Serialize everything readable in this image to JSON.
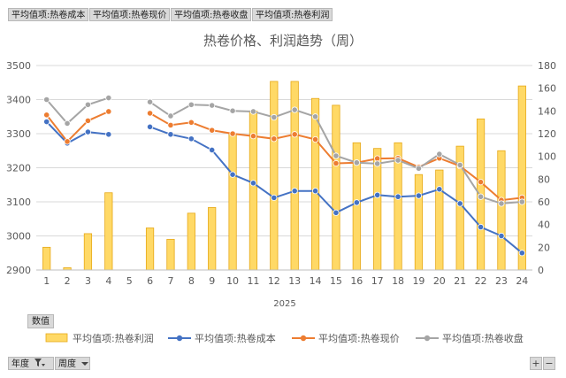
{
  "field_buttons": {
    "b1": "平均值项:热卷成本",
    "b2": "平均值项:热卷现价",
    "b3": "平均值项:热卷收盘",
    "b4": "平均值项:热卷利润"
  },
  "values_button": "数值",
  "bottom_buttons": {
    "year": "年度",
    "week": "周度",
    "plus": "+",
    "minus": "−"
  },
  "icons": {
    "filter": "filter-icon",
    "dropdown": "dropdown-arrow-icon"
  },
  "chart_data": {
    "type": "bar+line",
    "title": "热卷价格、利润趋势（周）",
    "xgroup_label": "2025",
    "categories": [
      "1",
      "2",
      "3",
      "4",
      "5",
      "6",
      "7",
      "8",
      "9",
      "10",
      "11",
      "12",
      "13",
      "14",
      "15",
      "16",
      "17",
      "18",
      "19",
      "20",
      "21",
      "22",
      "23",
      "24"
    ],
    "left_axis": {
      "min": 2900,
      "max": 3500,
      "ticks": [
        2900,
        3000,
        3100,
        3200,
        3300,
        3400,
        3500
      ]
    },
    "right_axis": {
      "min": 0,
      "max": 180,
      "ticks": [
        0,
        20,
        40,
        60,
        80,
        100,
        120,
        140,
        160,
        180
      ]
    },
    "colors": {
      "bar": "#ffd966",
      "bar_border": "#e6a817",
      "cost": "#4472c4",
      "price": "#ed7d31",
      "close": "#a5a5a5"
    },
    "series": [
      {
        "name": "平均值项:热卷利润",
        "kind": "bar",
        "axis": "right",
        "values": [
          20,
          2,
          32,
          68,
          null,
          37,
          27,
          50,
          55,
          120,
          140,
          166,
          166,
          151,
          145,
          112,
          107,
          112,
          84,
          88,
          109,
          133,
          105,
          162
        ]
      },
      {
        "name": "平均值项:热卷成本",
        "kind": "line",
        "axis": "left",
        "values": [
          3335,
          3272,
          3305,
          3298,
          null,
          3320,
          3298,
          3285,
          3252,
          3180,
          3155,
          3112,
          3132,
          3132,
          3068,
          3098,
          3120,
          3115,
          3118,
          3137,
          3095,
          3026,
          3000,
          2950
        ]
      },
      {
        "name": "平均值项:热卷现价",
        "kind": "line",
        "axis": "left",
        "values": [
          3355,
          3277,
          3338,
          3365,
          null,
          3360,
          3325,
          3333,
          3310,
          3300,
          3293,
          3285,
          3298,
          3283,
          3213,
          3215,
          3227,
          3228,
          3202,
          3228,
          3205,
          3158,
          3105,
          3112
        ]
      },
      {
        "name": "平均值项:热卷收盘",
        "kind": "line",
        "axis": "left",
        "values": [
          3400,
          3330,
          3385,
          3405,
          null,
          3393,
          3352,
          3385,
          3383,
          3367,
          3365,
          3348,
          3370,
          3350,
          3235,
          3215,
          3212,
          3222,
          3198,
          3240,
          3208,
          3115,
          3095,
          3100
        ]
      }
    ],
    "grid": true,
    "legend_position": "bottom"
  }
}
